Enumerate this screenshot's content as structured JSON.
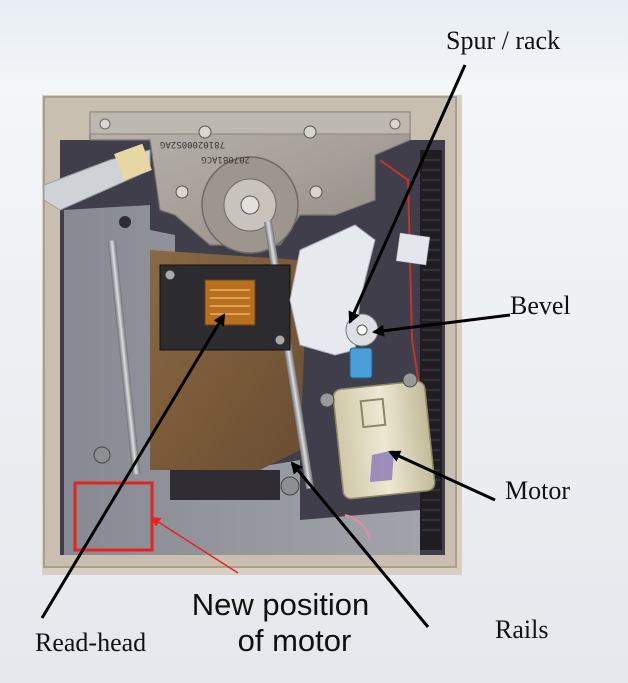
{
  "labels": {
    "spur_rack": "Spur / rack",
    "bevel": "Bevel",
    "motor": "Motor",
    "rails": "Rails",
    "read_head": "Read-head",
    "new_position_line1": "New position",
    "new_position_line2": "of motor"
  },
  "part_markings": {
    "line1": "78102000S2AG",
    "line2": "2070B1ACG"
  },
  "colors": {
    "background": "#ecf0f3",
    "highlight_box": "#e8231f",
    "arrows": "#000000",
    "annotation_arrow_red": "#e8231f"
  }
}
